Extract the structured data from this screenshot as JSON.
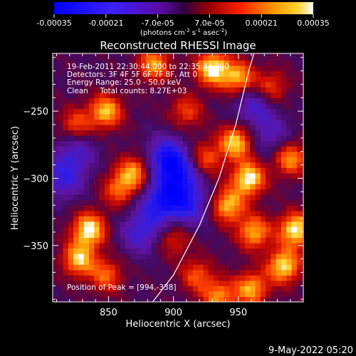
{
  "chart_data": {
    "type": "heatmap",
    "title": "Reconstructed RHESSI Image",
    "xlabel": "Heliocentric X (arcsec)",
    "ylabel": "Heliocentric Y (arcsec)",
    "x_ticks": [
      "850",
      "900",
      "950"
    ],
    "x_tick_values": [
      850,
      900,
      950
    ],
    "y_ticks": [
      "-250",
      "-300",
      "-350"
    ],
    "y_tick_values": [
      -250,
      -300,
      -350
    ],
    "xlim": [
      807,
      1000
    ],
    "ylim": [
      -392,
      -207
    ],
    "colorbar": {
      "tick_labels": [
        "-0.00035",
        "-0.00021",
        "-7.0e-05",
        "7.0e-05",
        "0.00021",
        "0.00035"
      ],
      "tick_values": [
        -0.00035,
        -0.00021,
        -7e-05,
        7e-05,
        0.00021,
        0.00035
      ],
      "range": [
        -0.00035,
        0.00035
      ],
      "units_label_parts": {
        "open": "(photons cm",
        "exp_cm": "-2",
        "s": " s",
        "exp_s": "-1",
        "asec": " asec",
        "exp_asec": "-2",
        "close": ")"
      }
    },
    "annotations": [
      "19-Feb-2011 22:30:44.000 to 22:35:44.000",
      "Detectors: 3F 4F 5F 6F 7F 8F, Att 0",
      "Energy Range: 25.0 - 50.0 keV",
      "Clean     Total counts: 8.27E+03"
    ],
    "peak_label": "Position of Peak = [994,-338]",
    "peak_position": [
      994,
      -338
    ],
    "limb_curve": [
      [
        884,
        -392
      ],
      [
        900,
        -372
      ],
      [
        920,
        -335
      ],
      [
        935,
        -300
      ],
      [
        948,
        -260
      ],
      [
        958,
        -220
      ],
      [
        962,
        -207
      ]
    ],
    "hotspots": [
      {
        "x": 848,
        "y": -250,
        "strength": 0.85
      },
      {
        "x": 825,
        "y": -260,
        "strength": 0.55
      },
      {
        "x": 870,
        "y": -295,
        "strength": 0.75
      },
      {
        "x": 858,
        "y": -308,
        "strength": 0.6
      },
      {
        "x": 835,
        "y": -338,
        "strength": 1.0
      },
      {
        "x": 827,
        "y": -360,
        "strength": 0.85
      },
      {
        "x": 848,
        "y": -372,
        "strength": 0.6
      },
      {
        "x": 885,
        "y": -215,
        "strength": 0.75
      },
      {
        "x": 930,
        "y": -218,
        "strength": 1.0
      },
      {
        "x": 950,
        "y": -225,
        "strength": 0.8
      },
      {
        "x": 975,
        "y": -232,
        "strength": 0.55
      },
      {
        "x": 910,
        "y": -250,
        "strength": 0.5
      },
      {
        "x": 925,
        "y": -285,
        "strength": 0.55
      },
      {
        "x": 948,
        "y": -273,
        "strength": 0.9
      },
      {
        "x": 958,
        "y": -300,
        "strength": 1.0
      },
      {
        "x": 942,
        "y": -320,
        "strength": 0.85
      },
      {
        "x": 962,
        "y": -340,
        "strength": 0.8
      },
      {
        "x": 990,
        "y": -285,
        "strength": 0.75
      },
      {
        "x": 994,
        "y": -338,
        "strength": 1.0
      },
      {
        "x": 985,
        "y": -365,
        "strength": 0.95
      },
      {
        "x": 960,
        "y": -382,
        "strength": 0.8
      },
      {
        "x": 918,
        "y": -372,
        "strength": 0.55
      },
      {
        "x": 900,
        "y": -345,
        "strength": 0.45
      },
      {
        "x": 935,
        "y": -388,
        "strength": 0.7
      }
    ],
    "coldspots": [
      {
        "x": 895,
        "y": -285,
        "strength": 0.85
      },
      {
        "x": 890,
        "y": -318,
        "strength": 0.75
      },
      {
        "x": 875,
        "y": -340,
        "strength": 0.55
      },
      {
        "x": 905,
        "y": -300,
        "strength": 0.65
      },
      {
        "x": 912,
        "y": -320,
        "strength": 0.6
      },
      {
        "x": 815,
        "y": -300,
        "strength": 0.55
      },
      {
        "x": 825,
        "y": -280,
        "strength": 0.45
      },
      {
        "x": 962,
        "y": -245,
        "strength": 0.5
      },
      {
        "x": 975,
        "y": -268,
        "strength": 0.4
      }
    ]
  },
  "footer": {
    "date": "9-May-2022 05:20"
  }
}
